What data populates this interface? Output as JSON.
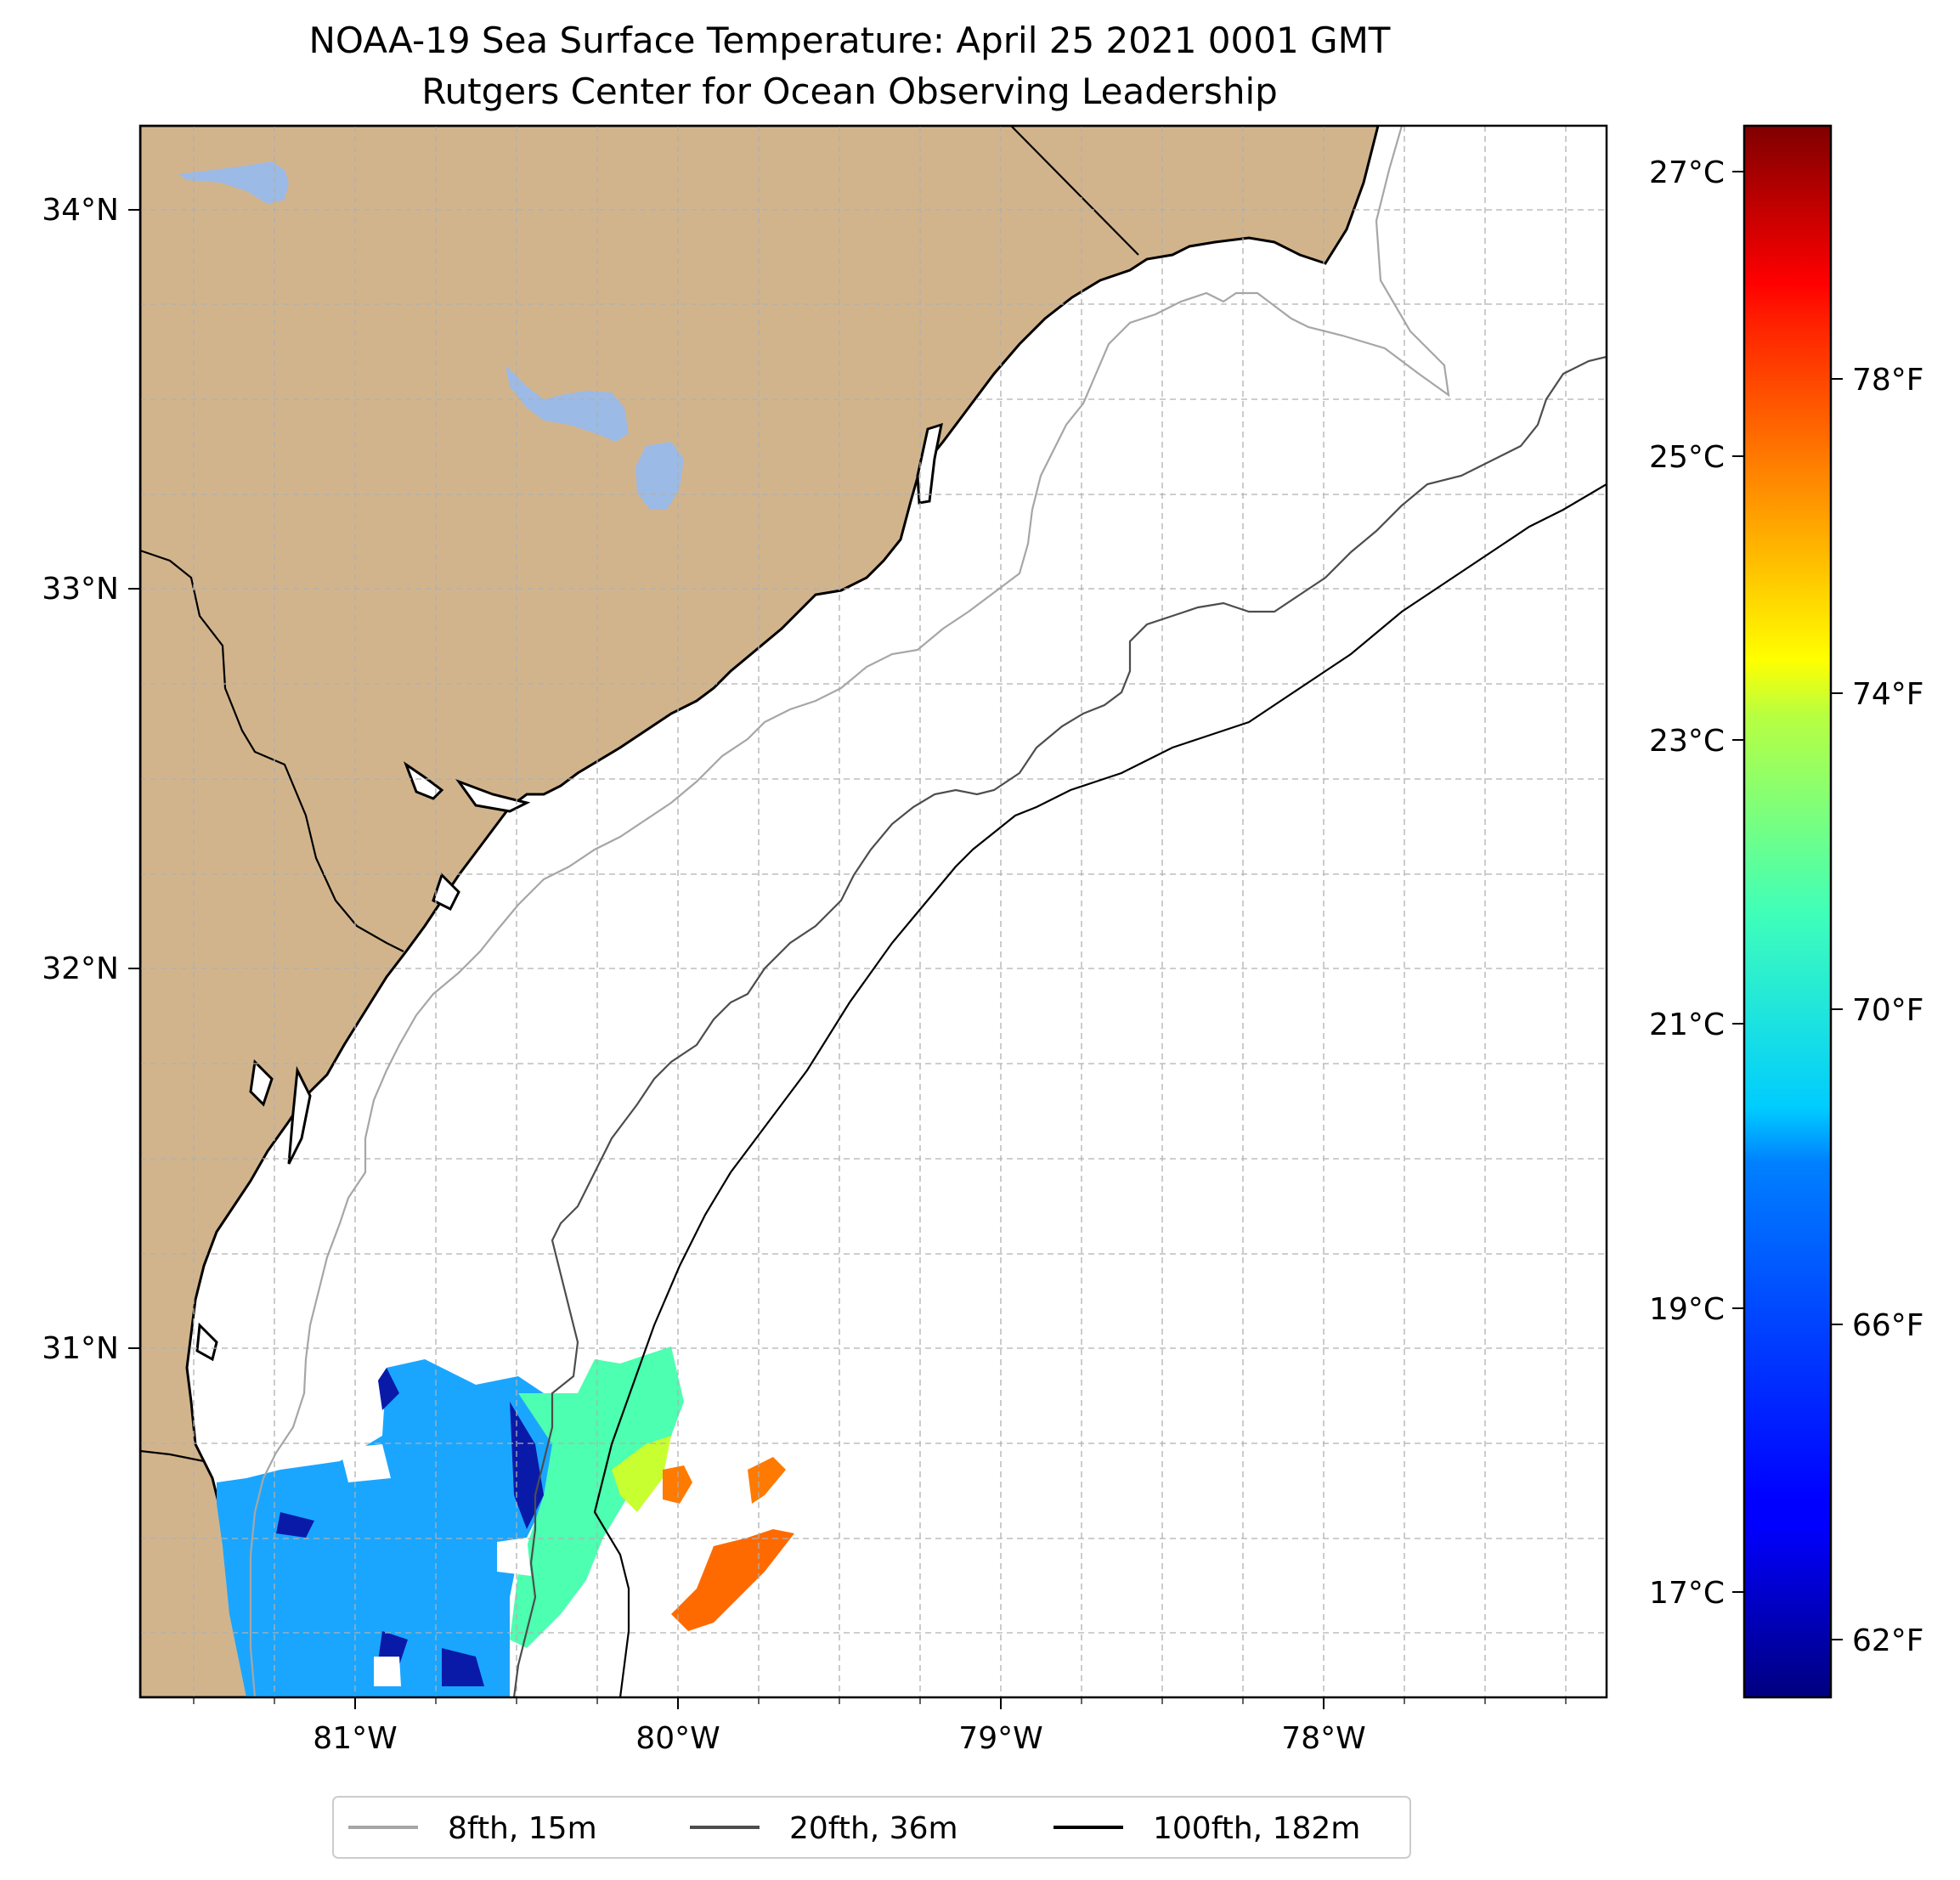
{
  "title": {
    "line1": "NOAA-19 Sea Surface Temperature: April 25 2021 0001 GMT",
    "line2": "Rutgers Center for Ocean Observing Leadership"
  },
  "map": {
    "lon_range": [
      -81.68,
      -77.12
    ],
    "lat_range": [
      30.08,
      34.22
    ],
    "gridlines": true,
    "land_color": "#d2b48c",
    "lake_color": "#9bbae6",
    "x_ticks": [
      {
        "lon": -81,
        "label": "81°W"
      },
      {
        "lon": -80,
        "label": "80°W"
      },
      {
        "lon": -79,
        "label": "79°W"
      },
      {
        "lon": -78,
        "label": "78°W"
      }
    ],
    "y_ticks": [
      {
        "lat": 34,
        "label": "34°N"
      },
      {
        "lat": 33,
        "label": "33°N"
      },
      {
        "lat": 32,
        "label": "32°N"
      },
      {
        "lat": 31,
        "label": "31°N"
      }
    ]
  },
  "colorbar": {
    "colormap": "jet",
    "celsius_ticks": [
      {
        "value": 27,
        "label": "27°C"
      },
      {
        "value": 25,
        "label": "25°C"
      },
      {
        "value": 23,
        "label": "23°C"
      },
      {
        "value": 21,
        "label": "21°C"
      },
      {
        "value": 19,
        "label": "19°C"
      },
      {
        "value": 17,
        "label": "17°C"
      }
    ],
    "fahrenheit_ticks": [
      {
        "value": 78,
        "label": "78°F"
      },
      {
        "value": 74,
        "label": "74°F"
      },
      {
        "value": 70,
        "label": "70°F"
      },
      {
        "value": 66,
        "label": "66°F"
      },
      {
        "value": 62,
        "label": "62°F"
      }
    ],
    "range_f": [
      61,
      81
    ]
  },
  "legend": {
    "placement": "bottom-center",
    "items": [
      {
        "label": "8fth, 15m",
        "color": "#a6a6a6"
      },
      {
        "label": "20fth, 36m",
        "color": "#4d4d4d"
      },
      {
        "label": "100fth, 182m",
        "color": "#000000"
      }
    ]
  }
}
